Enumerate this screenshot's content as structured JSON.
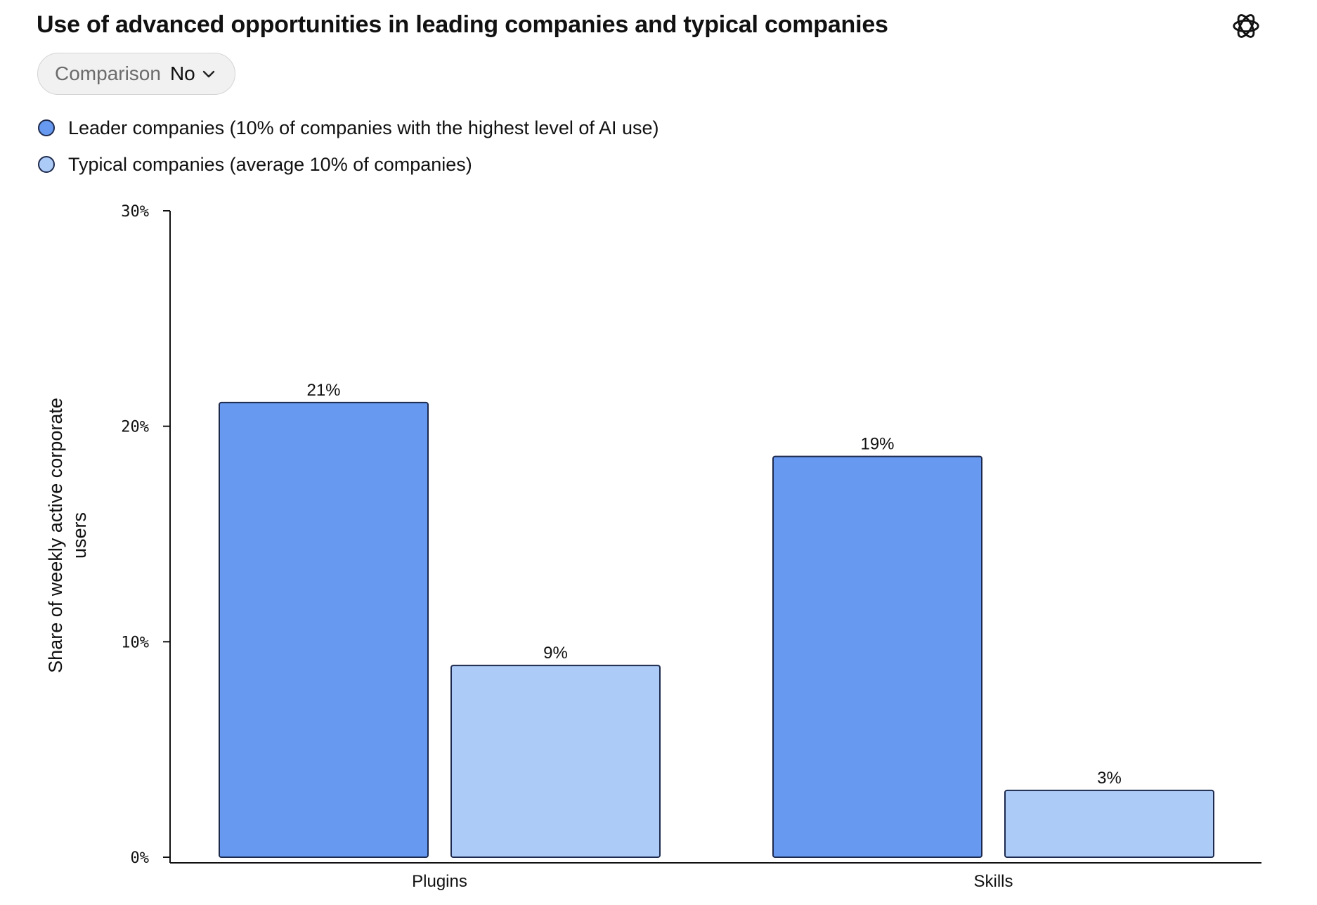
{
  "title": "Use of advanced opportunities in leading companies and typical companies",
  "logo": "openai-logo-icon",
  "filter": {
    "label": "Comparison",
    "value": "No",
    "icon": "chevron-down-icon"
  },
  "legend": [
    {
      "name": "Leader companies (10% of companies with the highest level of AI use)",
      "color": "#6699ef"
    },
    {
      "name": "Typical companies (average 10% of companies)",
      "color": "#adcbf7"
    }
  ],
  "chart_data": {
    "type": "bar",
    "title": "Use of advanced opportunities in leading companies and typical companies",
    "xlabel": "",
    "ylabel": "Share of weekly active corporate users",
    "ylim": [
      0,
      30
    ],
    "yticks": [
      0,
      10,
      20,
      30
    ],
    "ytick_labels": [
      "0%",
      "10%",
      "20%",
      "30%"
    ],
    "categories": [
      "Plugins",
      "Skills"
    ],
    "series": [
      {
        "name": "Leader companies (10% of companies with the highest level of AI use)",
        "values": [
          21.1,
          18.6
        ],
        "labels": [
          "21%",
          "19%"
        ],
        "color": "#6699ef"
      },
      {
        "name": "Typical companies (average 10% of companies)",
        "values": [
          8.9,
          3.1
        ],
        "labels": [
          "9%",
          "3%"
        ],
        "color": "#adcbf7"
      }
    ],
    "grid": false,
    "legend_position": "top-left"
  }
}
